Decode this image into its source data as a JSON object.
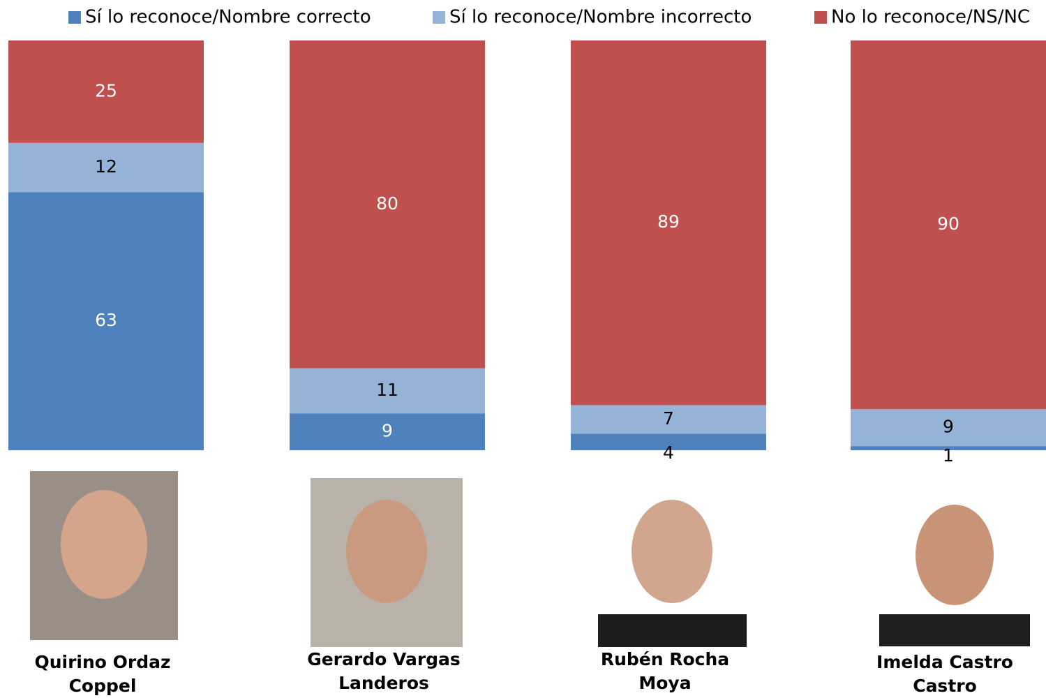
{
  "chart_data": {
    "type": "stacked_bar",
    "categories": [
      "Quirino Ordaz Coppel",
      "Gerardo Vargas Landeros",
      "Rubén Rocha Moya",
      "Imelda Castro Castro"
    ],
    "series": [
      {
        "name": "Sí lo reconoce/Nombre correcto",
        "color": "#4f81bd",
        "values": [
          63,
          9,
          4,
          1
        ]
      },
      {
        "name": "Sí lo reconoce/Nombre incorrecto",
        "color": "#95b3d7",
        "values": [
          12,
          11,
          7,
          9
        ]
      },
      {
        "name": "No lo reconoce/NS/NC",
        "color": "#c0504d",
        "values": [
          25,
          80,
          89,
          90
        ]
      }
    ],
    "legend": "top"
  }
}
